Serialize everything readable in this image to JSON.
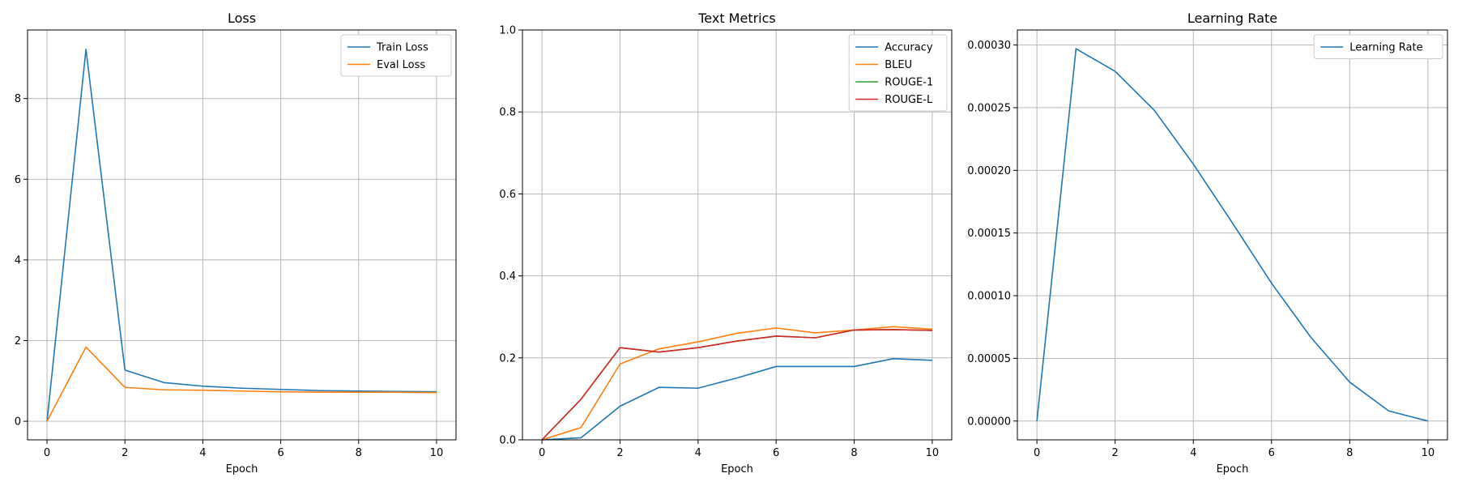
{
  "chart_data": [
    {
      "type": "line",
      "title": "Loss",
      "xlabel": "Epoch",
      "ylabel": "",
      "xlim": [
        -0.5,
        10.5
      ],
      "ylim": [
        -0.46,
        9.7
      ],
      "xticks": [
        0,
        2,
        4,
        6,
        8,
        10
      ],
      "xtick_labels": [
        "0",
        "2",
        "4",
        "6",
        "8",
        "10"
      ],
      "yticks": [
        0,
        2,
        4,
        6,
        8
      ],
      "ytick_labels": [
        "0",
        "2",
        "4",
        "6",
        "8"
      ],
      "grid": true,
      "legend_position": "top-right",
      "x": [
        0,
        1,
        2,
        3,
        4,
        5,
        6,
        7,
        8,
        9,
        10
      ],
      "series": [
        {
          "name": "Train Loss",
          "color": "#1f77b4",
          "values": [
            0.0,
            9.22,
            1.27,
            0.96,
            0.87,
            0.82,
            0.79,
            0.76,
            0.75,
            0.74,
            0.73
          ]
        },
        {
          "name": "Eval Loss",
          "color": "#ff7f0e",
          "values": [
            0.0,
            1.84,
            0.84,
            0.78,
            0.77,
            0.75,
            0.73,
            0.72,
            0.72,
            0.72,
            0.71
          ]
        }
      ]
    },
    {
      "type": "line",
      "title": "Text Metrics",
      "xlabel": "Epoch",
      "ylabel": "",
      "xlim": [
        -0.5,
        10.5
      ],
      "ylim": [
        0,
        1.0
      ],
      "xticks": [
        0,
        2,
        4,
        6,
        8,
        10
      ],
      "xtick_labels": [
        "0",
        "2",
        "4",
        "6",
        "8",
        "10"
      ],
      "yticks": [
        0,
        0.2,
        0.4,
        0.6,
        0.8,
        1.0
      ],
      "ytick_labels": [
        "0.0",
        "0.2",
        "0.4",
        "0.6",
        "0.8",
        "1.0"
      ],
      "grid": true,
      "legend_position": "top-right",
      "x": [
        0,
        1,
        2,
        3,
        4,
        5,
        6,
        7,
        8,
        9,
        10
      ],
      "series": [
        {
          "name": "Accuracy",
          "color": "#1f77b4",
          "values": [
            0.0,
            0.005,
            0.082,
            0.128,
            0.126,
            0.151,
            0.179,
            0.179,
            0.179,
            0.198,
            0.194
          ]
        },
        {
          "name": "BLEU",
          "color": "#ff7f0e",
          "values": [
            0.0,
            0.03,
            0.185,
            0.222,
            0.239,
            0.26,
            0.273,
            0.261,
            0.268,
            0.276,
            0.27
          ]
        },
        {
          "name": "ROUGE-1",
          "color": "#2ca02c",
          "values": [
            0.0,
            0.099,
            0.225,
            0.214,
            0.225,
            0.241,
            0.253,
            0.249,
            0.268,
            0.269,
            0.267
          ]
        },
        {
          "name": "ROUGE-L",
          "color": "#d62728",
          "values": [
            0.0,
            0.099,
            0.225,
            0.214,
            0.225,
            0.241,
            0.253,
            0.249,
            0.268,
            0.269,
            0.267
          ]
        }
      ]
    },
    {
      "type": "line",
      "title": "Learning Rate",
      "xlabel": "Epoch",
      "ylabel": "",
      "xlim": [
        -0.5,
        10.5
      ],
      "ylim": [
        -1.5e-05,
        0.000312
      ],
      "xticks": [
        0,
        2,
        4,
        6,
        8,
        10
      ],
      "xtick_labels": [
        "0",
        "2",
        "4",
        "6",
        "8",
        "10"
      ],
      "yticks": [
        0,
        5e-05,
        0.0001,
        0.00015,
        0.0002,
        0.00025,
        0.0003
      ],
      "ytick_labels": [
        "0.00000",
        "0.00005",
        "0.00010",
        "0.00015",
        "0.00020",
        "0.00025",
        "0.00030"
      ],
      "grid": true,
      "legend_position": "top-right",
      "x": [
        0,
        1,
        2,
        3,
        4,
        5,
        6,
        7,
        8,
        9,
        10
      ],
      "series": [
        {
          "name": "Learning Rate",
          "color": "#1f77b4",
          "values": [
            0.0,
            0.000297,
            0.000279,
            0.000248,
            0.000205,
            0.000158,
            0.00011,
            6.7e-05,
            3.1e-05,
            8e-06,
            0.0
          ]
        }
      ]
    }
  ]
}
